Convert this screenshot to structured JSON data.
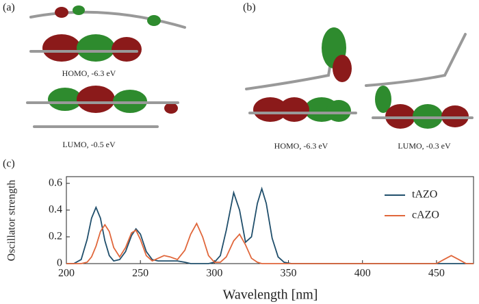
{
  "panels": [
    {
      "label": "(a)",
      "captions": [
        "HOMO, -6.3 eV",
        "LUMO, -0.5 eV"
      ]
    },
    {
      "label": "(b)",
      "captions": [
        "HOMO, -6.3 eV",
        "LUMO, -0.3 eV"
      ]
    },
    {
      "label": "(c)"
    }
  ],
  "chart_data": {
    "type": "line",
    "x_label": "Wavelength [nm]",
    "y_label": "Oscillator strength",
    "x": [
      200,
      205,
      210,
      214,
      217,
      220,
      223,
      226,
      229,
      232,
      236,
      240,
      244,
      247,
      250,
      254,
      258,
      262,
      266,
      270,
      275,
      280,
      284,
      288,
      292,
      296,
      300,
      304,
      308,
      313,
      317,
      321,
      325,
      329,
      332,
      335,
      339,
      343,
      347,
      352,
      360,
      380,
      400,
      420,
      440,
      450,
      455,
      460,
      465,
      470,
      475
    ],
    "series": [
      {
        "name": "tAZO",
        "color": "#1f4e6b",
        "values": [
          0,
          0,
          0.03,
          0.18,
          0.34,
          0.42,
          0.34,
          0.17,
          0.06,
          0.02,
          0.03,
          0.09,
          0.21,
          0.26,
          0.22,
          0.09,
          0.03,
          0.02,
          0.02,
          0.02,
          0.02,
          0.01,
          0,
          0,
          0,
          0,
          0.01,
          0.06,
          0.25,
          0.53,
          0.4,
          0.16,
          0.2,
          0.45,
          0.56,
          0.45,
          0.19,
          0.05,
          0.01,
          0,
          0,
          0,
          0,
          0,
          0,
          0,
          0,
          0,
          0,
          0,
          0
        ]
      },
      {
        "name": "cAZO",
        "color": "#e0663a",
        "values": [
          0,
          0,
          0,
          0.01,
          0.05,
          0.13,
          0.24,
          0.29,
          0.24,
          0.12,
          0.05,
          0.12,
          0.23,
          0.25,
          0.18,
          0.06,
          0.02,
          0.04,
          0.06,
          0.05,
          0.03,
          0.1,
          0.22,
          0.3,
          0.2,
          0.06,
          0.01,
          0.01,
          0.05,
          0.17,
          0.22,
          0.14,
          0.04,
          0.01,
          0,
          0,
          0,
          0,
          0,
          0,
          0,
          0,
          0,
          0,
          0,
          0,
          0.03,
          0.06,
          0.03,
          0,
          0
        ]
      }
    ],
    "xlim": [
      200,
      475
    ],
    "xticks": [
      200,
      250,
      300,
      350,
      400,
      450
    ],
    "ylim": [
      0,
      0.65
    ],
    "yticks": [
      0,
      0.2,
      0.4,
      0.6
    ],
    "legend": "upper-right"
  }
}
